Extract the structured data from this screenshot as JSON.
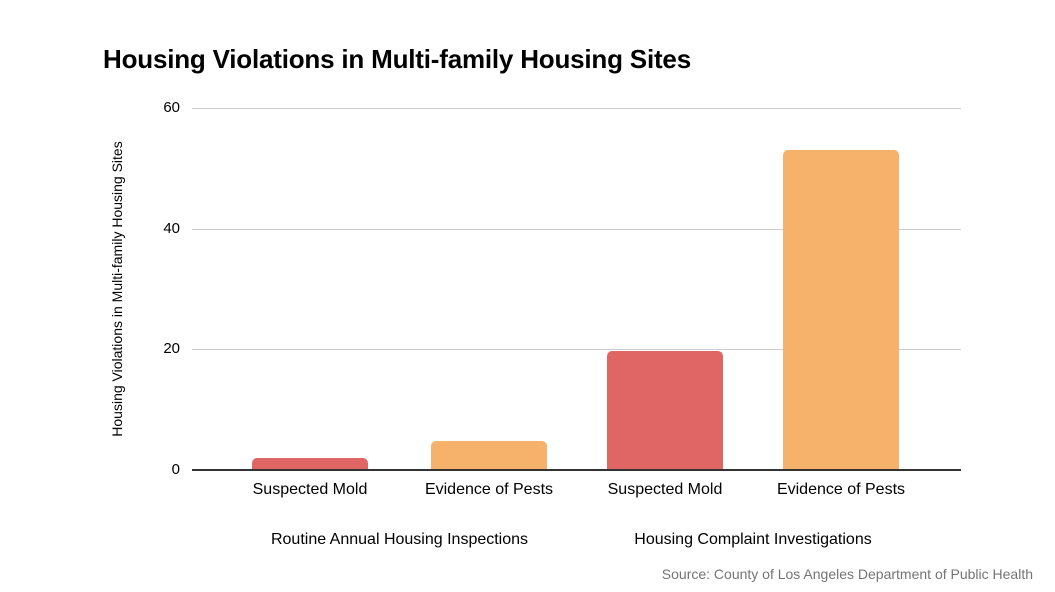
{
  "chart_data": {
    "type": "bar",
    "title": "Housing Violations in Multi-family Housing Sites",
    "ylabel": "Housing Violations in Multi-family Housing Sites",
    "xlabel": "",
    "source": "Source: County of Los Angeles Department of Public Health",
    "ylim": [
      0,
      60
    ],
    "yticks": [
      0,
      20,
      40,
      60
    ],
    "grid": "horizontal-gridlines",
    "legend_position": "none",
    "bar_colors": {
      "suspected_mold": "#e06666",
      "evidence_of_pests": "#f6b26b"
    },
    "groups": [
      {
        "label": "Routine Annual Housing Inspections",
        "bars": [
          {
            "category": "Suspected Mold",
            "value": 2,
            "color": "#e06666"
          },
          {
            "category": "Evidence of Pests",
            "value": 4.8,
            "color": "#f6b26b"
          }
        ]
      },
      {
        "label": "Housing Complaint Investigations",
        "bars": [
          {
            "category": "Suspected Mold",
            "value": 19.8,
            "color": "#e06666"
          },
          {
            "category": "Evidence of Pests",
            "value": 53,
            "color": "#f6b26b"
          }
        ]
      }
    ]
  },
  "colors": {
    "background": "#ffffff",
    "gridline": "#cccccc",
    "axis_line": "#333333",
    "text": "#000000",
    "source_text": "#757575"
  }
}
